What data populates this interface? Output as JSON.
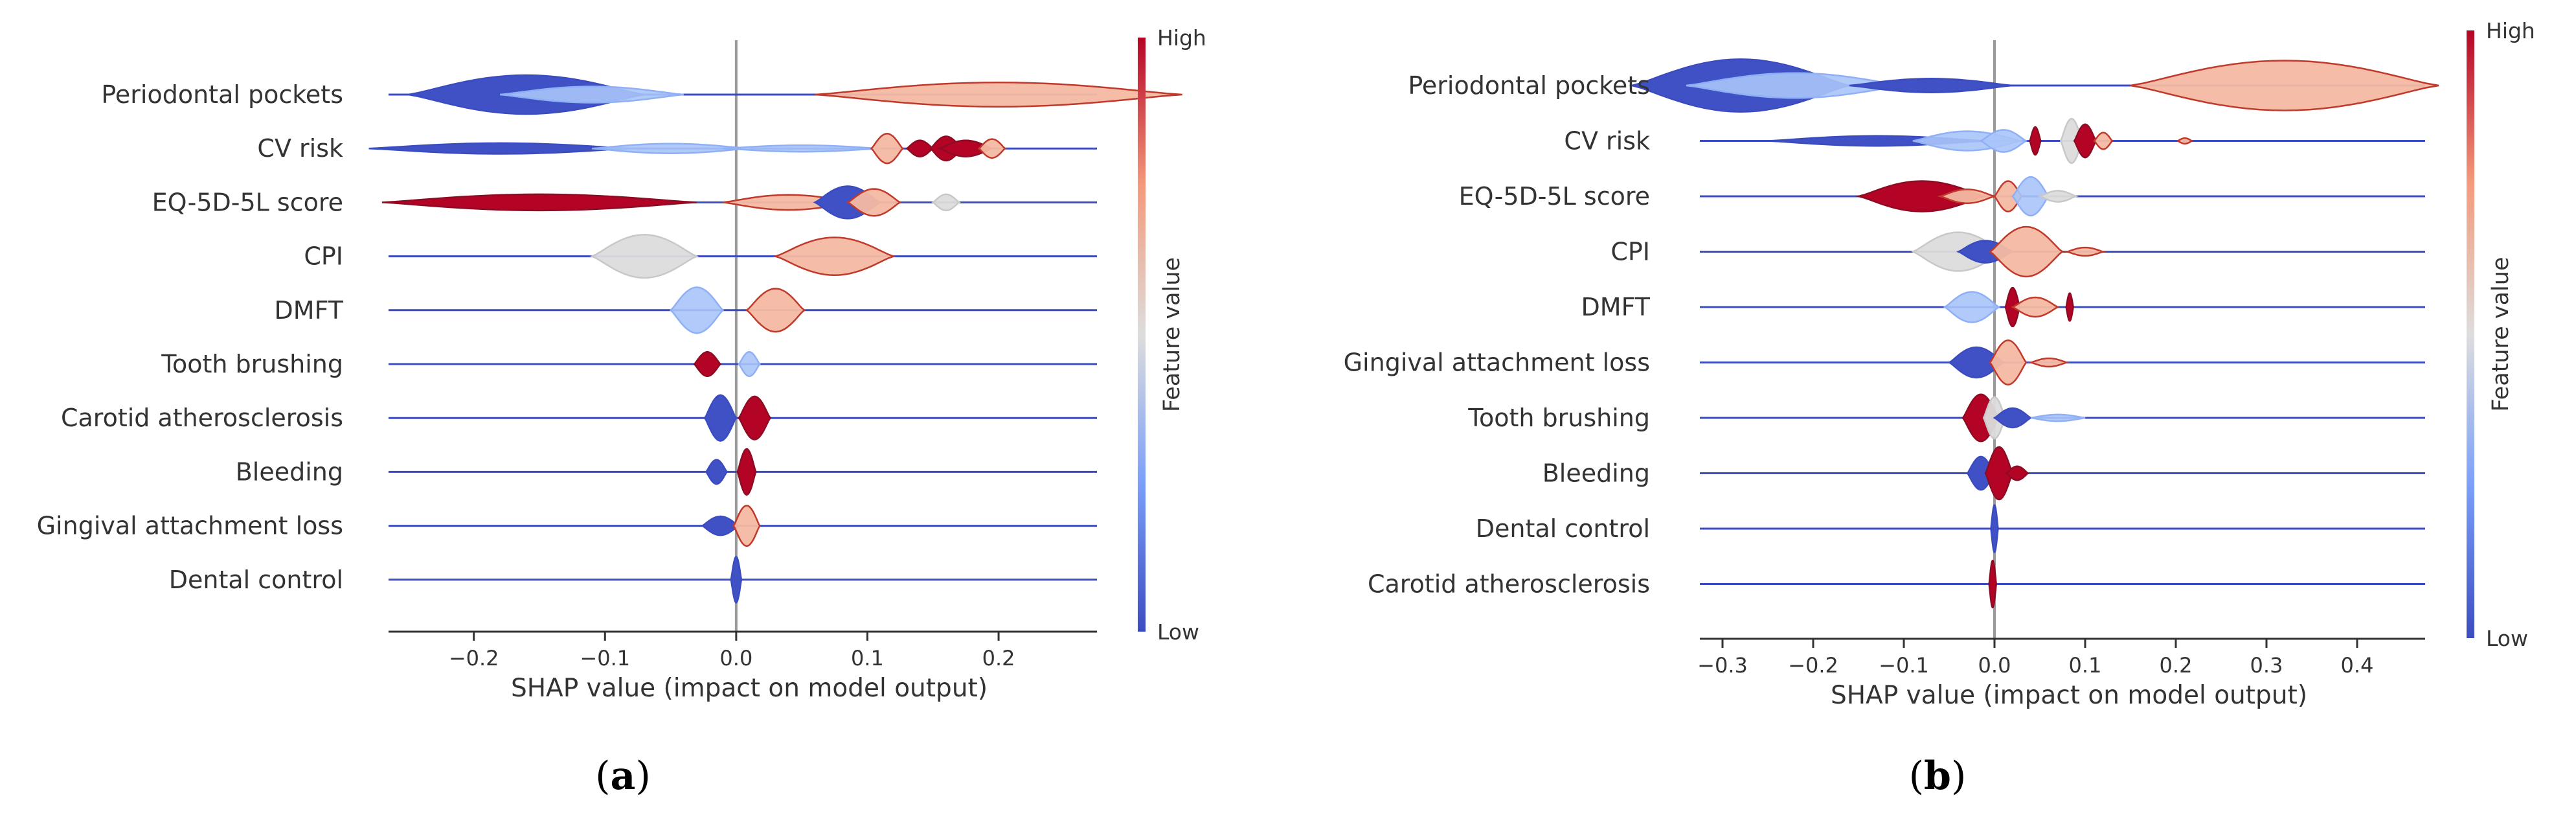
{
  "colors": {
    "low": "#3b4cc0",
    "mid": "#dddddd",
    "high": "#b40426",
    "row_line": "#3b4cc0",
    "zero_line": "#999999",
    "axis": "#333333"
  },
  "chart_data": [
    {
      "type": "violin",
      "panel_label": "(a)",
      "panel_letter": "a",
      "xlabel": "SHAP value (impact on model output)",
      "xlim": [
        -0.265,
        0.275
      ],
      "xticks": [
        -0.2,
        -0.1,
        0.0,
        0.1,
        0.2
      ],
      "xtick_labels": [
        "−0.2",
        "−0.1",
        "0.0",
        "0.1",
        "0.2"
      ],
      "colorbar": {
        "title": "Feature value",
        "high_label": "High",
        "low_label": "Low"
      },
      "features": [
        {
          "name": "Periodontal pockets",
          "blobs": [
            {
              "x": -0.16,
              "w": 0.09,
              "h": 0.72,
              "color": "low"
            },
            {
              "x": -0.11,
              "w": 0.07,
              "h": 0.3,
              "color": "lowmid"
            },
            {
              "x": 0.2,
              "w": 0.14,
              "h": 0.45,
              "color": "highmid"
            }
          ]
        },
        {
          "name": "CV risk",
          "blobs": [
            {
              "x": -0.18,
              "w": 0.1,
              "h": 0.2,
              "color": "low"
            },
            {
              "x": -0.05,
              "w": 0.06,
              "h": 0.18,
              "color": "lowmid"
            },
            {
              "x": 0.05,
              "w": 0.06,
              "h": 0.12,
              "color": "lowmid"
            },
            {
              "x": 0.115,
              "w": 0.012,
              "h": 0.55,
              "color": "highmid"
            },
            {
              "x": 0.14,
              "w": 0.01,
              "h": 0.3,
              "color": "high"
            },
            {
              "x": 0.16,
              "w": 0.012,
              "h": 0.45,
              "color": "high"
            },
            {
              "x": 0.175,
              "w": 0.02,
              "h": 0.3,
              "color": "high"
            },
            {
              "x": 0.195,
              "w": 0.01,
              "h": 0.35,
              "color": "highmid"
            }
          ]
        },
        {
          "name": "EQ-5D-5L score",
          "blobs": [
            {
              "x": -0.15,
              "w": 0.12,
              "h": 0.3,
              "color": "high"
            },
            {
              "x": 0.04,
              "w": 0.05,
              "h": 0.28,
              "color": "highmid"
            },
            {
              "x": 0.085,
              "w": 0.025,
              "h": 0.6,
              "color": "low"
            },
            {
              "x": 0.105,
              "w": 0.02,
              "h": 0.5,
              "color": "highmid"
            },
            {
              "x": 0.16,
              "w": 0.01,
              "h": 0.3,
              "color": "mid"
            }
          ]
        },
        {
          "name": "CPI",
          "blobs": [
            {
              "x": -0.07,
              "w": 0.04,
              "h": 0.8,
              "color": "mid"
            },
            {
              "x": 0.075,
              "w": 0.045,
              "h": 0.7,
              "color": "highmid"
            }
          ]
        },
        {
          "name": "DMFT",
          "blobs": [
            {
              "x": -0.03,
              "w": 0.02,
              "h": 0.85,
              "color": "lowmid"
            },
            {
              "x": 0.03,
              "w": 0.022,
              "h": 0.8,
              "color": "highmid"
            }
          ]
        },
        {
          "name": "Tooth brushing",
          "blobs": [
            {
              "x": -0.022,
              "w": 0.01,
              "h": 0.45,
              "color": "high"
            },
            {
              "x": 0.01,
              "w": 0.008,
              "h": 0.45,
              "color": "lowmid"
            }
          ]
        },
        {
          "name": "Carotid atherosclerosis",
          "blobs": [
            {
              "x": -0.012,
              "w": 0.012,
              "h": 0.85,
              "color": "low"
            },
            {
              "x": 0.014,
              "w": 0.012,
              "h": 0.8,
              "color": "high"
            }
          ]
        },
        {
          "name": "Bleeding",
          "blobs": [
            {
              "x": -0.015,
              "w": 0.008,
              "h": 0.45,
              "color": "low"
            },
            {
              "x": 0.008,
              "w": 0.007,
              "h": 0.85,
              "color": "high"
            }
          ]
        },
        {
          "name": "Gingival attachment loss",
          "blobs": [
            {
              "x": -0.012,
              "w": 0.014,
              "h": 0.35,
              "color": "low"
            },
            {
              "x": 0.008,
              "w": 0.01,
              "h": 0.75,
              "color": "highmid"
            }
          ]
        },
        {
          "name": "Dental control",
          "blobs": [
            {
              "x": 0.0,
              "w": 0.004,
              "h": 0.85,
              "color": "low"
            }
          ]
        }
      ]
    },
    {
      "type": "violin",
      "panel_label": "(b)",
      "panel_letter": "b",
      "xlabel": "SHAP value (impact on model output)",
      "xlim": [
        -0.325,
        0.475
      ],
      "xticks": [
        -0.3,
        -0.2,
        -0.1,
        0.0,
        0.1,
        0.2,
        0.3,
        0.4
      ],
      "xtick_labels": [
        "−0.3",
        "−0.2",
        "−0.1",
        "0.0",
        "0.1",
        "0.2",
        "0.3",
        "0.4"
      ],
      "colorbar": {
        "title": "Feature value",
        "high_label": "High",
        "low_label": "Low"
      },
      "features": [
        {
          "name": "Periodontal pockets",
          "blobs": [
            {
              "x": -0.28,
              "w": 0.12,
              "h": 0.95,
              "color": "low"
            },
            {
              "x": -0.22,
              "w": 0.12,
              "h": 0.45,
              "color": "lowmid"
            },
            {
              "x": -0.07,
              "w": 0.09,
              "h": 0.25,
              "color": "low"
            },
            {
              "x": 0.32,
              "w": 0.17,
              "h": 0.9,
              "color": "highmid"
            }
          ]
        },
        {
          "name": "CV risk",
          "blobs": [
            {
              "x": -0.13,
              "w": 0.12,
              "h": 0.18,
              "color": "low"
            },
            {
              "x": -0.03,
              "w": 0.06,
              "h": 0.35,
              "color": "lowmid"
            },
            {
              "x": 0.01,
              "w": 0.025,
              "h": 0.4,
              "color": "lowmid"
            },
            {
              "x": 0.045,
              "w": 0.006,
              "h": 0.5,
              "color": "high"
            },
            {
              "x": 0.085,
              "w": 0.012,
              "h": 0.8,
              "color": "mid"
            },
            {
              "x": 0.1,
              "w": 0.012,
              "h": 0.6,
              "color": "high"
            },
            {
              "x": 0.12,
              "w": 0.01,
              "h": 0.3,
              "color": "highmid"
            },
            {
              "x": 0.21,
              "w": 0.008,
              "h": 0.1,
              "color": "highmid"
            }
          ]
        },
        {
          "name": "EQ-5D-5L score",
          "blobs": [
            {
              "x": -0.08,
              "w": 0.07,
              "h": 0.55,
              "color": "high"
            },
            {
              "x": -0.03,
              "w": 0.03,
              "h": 0.25,
              "color": "highmid"
            },
            {
              "x": 0.015,
              "w": 0.015,
              "h": 0.55,
              "color": "highmid"
            },
            {
              "x": 0.04,
              "w": 0.02,
              "h": 0.7,
              "color": "lowmid"
            },
            {
              "x": 0.07,
              "w": 0.02,
              "h": 0.2,
              "color": "mid"
            }
          ]
        },
        {
          "name": "CPI",
          "blobs": [
            {
              "x": -0.04,
              "w": 0.05,
              "h": 0.7,
              "color": "mid"
            },
            {
              "x": -0.01,
              "w": 0.03,
              "h": 0.4,
              "color": "low"
            },
            {
              "x": 0.035,
              "w": 0.04,
              "h": 0.9,
              "color": "highmid"
            },
            {
              "x": 0.1,
              "w": 0.02,
              "h": 0.15,
              "color": "highmid"
            }
          ]
        },
        {
          "name": "DMFT",
          "blobs": [
            {
              "x": -0.025,
              "w": 0.03,
              "h": 0.55,
              "color": "lowmid"
            },
            {
              "x": 0.02,
              "w": 0.008,
              "h": 0.7,
              "color": "high"
            },
            {
              "x": 0.045,
              "w": 0.025,
              "h": 0.35,
              "color": "highmid"
            },
            {
              "x": 0.083,
              "w": 0.004,
              "h": 0.5,
              "color": "high"
            }
          ]
        },
        {
          "name": "Gingival attachment loss",
          "blobs": [
            {
              "x": -0.02,
              "w": 0.03,
              "h": 0.55,
              "color": "low"
            },
            {
              "x": 0.015,
              "w": 0.02,
              "h": 0.8,
              "color": "highmid"
            },
            {
              "x": 0.06,
              "w": 0.02,
              "h": 0.15,
              "color": "highmid"
            }
          ]
        },
        {
          "name": "Tooth brushing",
          "blobs": [
            {
              "x": -0.015,
              "w": 0.02,
              "h": 0.85,
              "color": "high"
            },
            {
              "x": 0.0,
              "w": 0.012,
              "h": 0.75,
              "color": "mid"
            },
            {
              "x": 0.02,
              "w": 0.02,
              "h": 0.35,
              "color": "low"
            },
            {
              "x": 0.07,
              "w": 0.03,
              "h": 0.12,
              "color": "lowmid"
            }
          ]
        },
        {
          "name": "Bleeding",
          "blobs": [
            {
              "x": -0.015,
              "w": 0.015,
              "h": 0.6,
              "color": "low"
            },
            {
              "x": 0.005,
              "w": 0.015,
              "h": 0.95,
              "color": "high"
            },
            {
              "x": 0.025,
              "w": 0.012,
              "h": 0.25,
              "color": "high"
            }
          ]
        },
        {
          "name": "Dental control",
          "blobs": [
            {
              "x": 0.0,
              "w": 0.004,
              "h": 0.85,
              "color": "low"
            }
          ]
        },
        {
          "name": "Carotid atherosclerosis",
          "blobs": [
            {
              "x": -0.002,
              "w": 0.004,
              "h": 0.85,
              "color": "high"
            }
          ]
        }
      ]
    }
  ]
}
